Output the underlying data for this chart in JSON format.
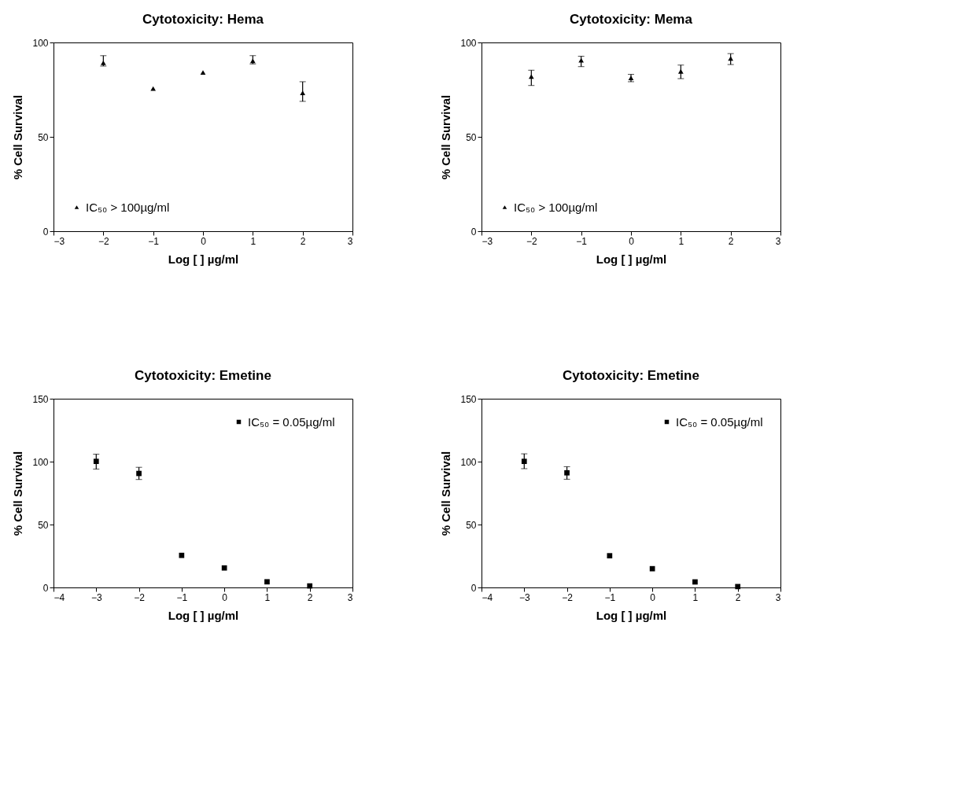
{
  "chart_data": [
    {
      "type": "scatter",
      "title": "Cytotoxicity: Hema",
      "xlabel": "Log [ ] µg/ml",
      "ylabel": "% Cell Survival",
      "x": [
        -2,
        -1,
        0,
        1,
        2
      ],
      "xlim": [
        -3,
        3
      ],
      "xticks": [
        -3,
        -2,
        -1,
        0,
        1,
        2,
        3
      ],
      "ylim": [
        0,
        100
      ],
      "yticks": [
        0,
        50,
        100
      ],
      "grid": false,
      "legend": "bottom left",
      "marker": "triangle",
      "series": [
        {
          "name": "IC₅₀ > 100µg/ml",
          "color": "#000000",
          "values": [
            89.2,
            75.6,
            84.1,
            90.3,
            73.3
          ],
          "errors": [
            [
              87.5,
              93
            ],
            null,
            null,
            [
              88.6,
              93
            ],
            [
              68.8,
              79.2
            ]
          ]
        }
      ]
    },
    {
      "type": "scatter",
      "title": "Cytotoxicity: Mema",
      "xlabel": "Log [ ] µg/ml",
      "ylabel": "% Cell Survival",
      "x": [
        -2,
        -1,
        0,
        1,
        2
      ],
      "xlim": [
        -3,
        3
      ],
      "xticks": [
        -3,
        -2,
        -1,
        0,
        1,
        2,
        3
      ],
      "ylim": [
        0,
        100
      ],
      "yticks": [
        0,
        50,
        100
      ],
      "grid": false,
      "legend": "bottom left",
      "marker": "triangle",
      "series": [
        {
          "name": "IC₅₀ > 100µg/ml",
          "color": "#000000",
          "values": [
            81.9,
            90.6,
            81.2,
            84.7,
            91.5
          ],
          "errors": [
            [
              77.2,
              85.3
            ],
            [
              87.2,
              92.7
            ],
            [
              79.2,
              83.1
            ],
            [
              80.8,
              88
            ],
            [
              88.3,
              94.1
            ]
          ]
        }
      ]
    },
    {
      "type": "scatter",
      "title": "Cytotoxicity: Emetine",
      "xlabel": "Log [ ] µg/ml",
      "ylabel": "% Cell Survival",
      "x": [
        -3,
        -2,
        -1,
        0,
        1,
        2
      ],
      "xlim": [
        -4,
        3
      ],
      "xticks": [
        -4,
        -3,
        -2,
        -1,
        0,
        1,
        2,
        3
      ],
      "ylim": [
        0,
        150
      ],
      "yticks": [
        0,
        50,
        100,
        150
      ],
      "grid": false,
      "legend": "top right",
      "marker": "square",
      "series": [
        {
          "name": "IC₅₀ = 0.05µg/ml",
          "color": "#000000",
          "values": [
            100.2,
            90.6,
            25.5,
            15.5,
            4.5,
            1.2
          ],
          "errors": [
            [
              94.1,
              105.9
            ],
            [
              85.8,
              95.5
            ],
            null,
            null,
            null,
            null
          ]
        }
      ]
    },
    {
      "type": "scatter",
      "title": "Cytotoxicity: Emetine",
      "xlabel": "Log [ ] µg/ml",
      "ylabel": "% Cell Survival",
      "x": [
        -3,
        -2,
        -1,
        0,
        1,
        2
      ],
      "xlim": [
        -4,
        3
      ],
      "xticks": [
        -4,
        -3,
        -2,
        -1,
        0,
        1,
        2,
        3
      ],
      "ylim": [
        0,
        150
      ],
      "yticks": [
        0,
        50,
        100,
        150
      ],
      "grid": false,
      "legend": "top right",
      "marker": "square",
      "series": [
        {
          "name": "IC₅₀ = 0.05µg/ml",
          "color": "#000000",
          "values": [
            100.2,
            91.1,
            25.2,
            14.9,
            4.4,
            0.7
          ],
          "errors": [
            [
              94.4,
              106.2
            ],
            [
              86,
              96
            ],
            null,
            null,
            null,
            null
          ]
        }
      ]
    }
  ]
}
